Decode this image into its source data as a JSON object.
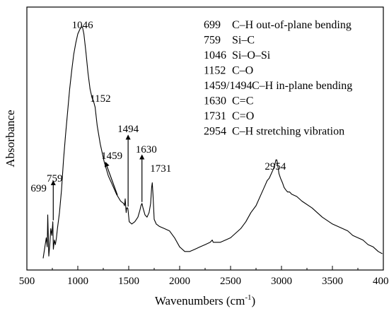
{
  "chart_data": {
    "type": "line",
    "title": "",
    "xlabel": "Wavenumbers (cm",
    "xlabel_sup": "-1",
    "xlabel_end": ")",
    "ylabel": "Absorbance",
    "xlim": [
      500,
      4000
    ],
    "x_ticks": [
      500,
      1000,
      1500,
      2000,
      2500,
      3000,
      3500,
      4000
    ],
    "y_ticks": [],
    "grid": false,
    "legend": "top-right",
    "line_color": "#000000",
    "peak_labels": [
      {
        "text": "699",
        "x": 699
      },
      {
        "text": "759",
        "x": 759
      },
      {
        "text": "1046",
        "x": 1046
      },
      {
        "text": "1152",
        "x": 1152
      },
      {
        "text": "1459",
        "x": 1459
      },
      {
        "text": "1494",
        "x": 1494
      },
      {
        "text": "1630",
        "x": 1630
      },
      {
        "text": "1731",
        "x": 1731
      },
      {
        "text": "2954",
        "x": 2954
      }
    ],
    "legend_entries": [
      {
        "code": "699",
        "desc": "C–H out-of-plane bending"
      },
      {
        "code": "759",
        "desc": "Si–C"
      },
      {
        "code": "1046",
        "desc": "Si–O–Si"
      },
      {
        "code": "1152",
        "desc": "C–O"
      },
      {
        "code": "1459/1494",
        "desc": "C–H in-plane bending"
      },
      {
        "code": "1630",
        "desc": "C=C"
      },
      {
        "code": "1731",
        "desc": "C=O"
      },
      {
        "code": "2954",
        "desc": "C–H stretching vibration"
      }
    ],
    "series": [
      {
        "x": [
          660,
          690,
          700,
          705,
          715,
          725,
          735,
          745,
          755,
          760,
          770,
          780,
          790,
          800,
          820,
          840,
          860,
          880,
          900,
          920,
          940,
          960,
          980,
          1000,
          1020,
          1035,
          1046,
          1060,
          1080,
          1100,
          1120,
          1140,
          1152,
          1170,
          1190,
          1220,
          1260,
          1300,
          1340,
          1380,
          1420,
          1450,
          1459,
          1465,
          1475,
          1480,
          1490,
          1494,
          1498,
          1505,
          1530,
          1560,
          1590,
          1610,
          1620,
          1630,
          1640,
          1660,
          1680,
          1700,
          1715,
          1725,
          1731,
          1738,
          1750,
          1770,
          1800,
          1850,
          1900,
          1950,
          2000,
          2050,
          2080,
          2100,
          2150,
          2200,
          2250,
          2300,
          2320,
          2330,
          2340,
          2360,
          2400,
          2450,
          2500,
          2550,
          2600,
          2650,
          2700,
          2750,
          2800,
          2820,
          2840,
          2860,
          2880,
          2900,
          2920,
          2935,
          2945,
          2954,
          2965,
          2975,
          2990,
          3010,
          3025,
          3040,
          3060,
          3080,
          3100,
          3150,
          3200,
          3300,
          3400,
          3500,
          3600,
          3650,
          3700,
          3750,
          3800,
          3850,
          3900,
          3950,
          3990
        ],
        "y": [
          0.02,
          0.11,
          0.07,
          0.21,
          0.03,
          0.08,
          0.15,
          0.12,
          0.18,
          0.06,
          0.1,
          0.08,
          0.11,
          0.15,
          0.22,
          0.32,
          0.45,
          0.56,
          0.66,
          0.76,
          0.84,
          0.91,
          0.96,
          1.0,
          1.02,
          1.03,
          1.03,
          1.0,
          0.92,
          0.83,
          0.76,
          0.72,
          0.71,
          0.68,
          0.6,
          0.52,
          0.44,
          0.38,
          0.34,
          0.3,
          0.27,
          0.26,
          0.25,
          0.28,
          0.22,
          0.24,
          0.24,
          0.23,
          0.21,
          0.18,
          0.17,
          0.18,
          0.2,
          0.23,
          0.25,
          0.26,
          0.24,
          0.21,
          0.2,
          0.22,
          0.26,
          0.33,
          0.35,
          0.3,
          0.19,
          0.17,
          0.16,
          0.15,
          0.14,
          0.11,
          0.07,
          0.05,
          0.05,
          0.05,
          0.06,
          0.07,
          0.08,
          0.09,
          0.1,
          0.09,
          0.09,
          0.09,
          0.09,
          0.1,
          0.11,
          0.13,
          0.15,
          0.18,
          0.22,
          0.25,
          0.3,
          0.32,
          0.34,
          0.36,
          0.37,
          0.39,
          0.41,
          0.43,
          0.45,
          0.45,
          0.42,
          0.39,
          0.37,
          0.35,
          0.33,
          0.32,
          0.31,
          0.31,
          0.3,
          0.29,
          0.27,
          0.24,
          0.2,
          0.17,
          0.15,
          0.14,
          0.12,
          0.11,
          0.1,
          0.08,
          0.07,
          0.05,
          0.04
        ]
      }
    ]
  }
}
